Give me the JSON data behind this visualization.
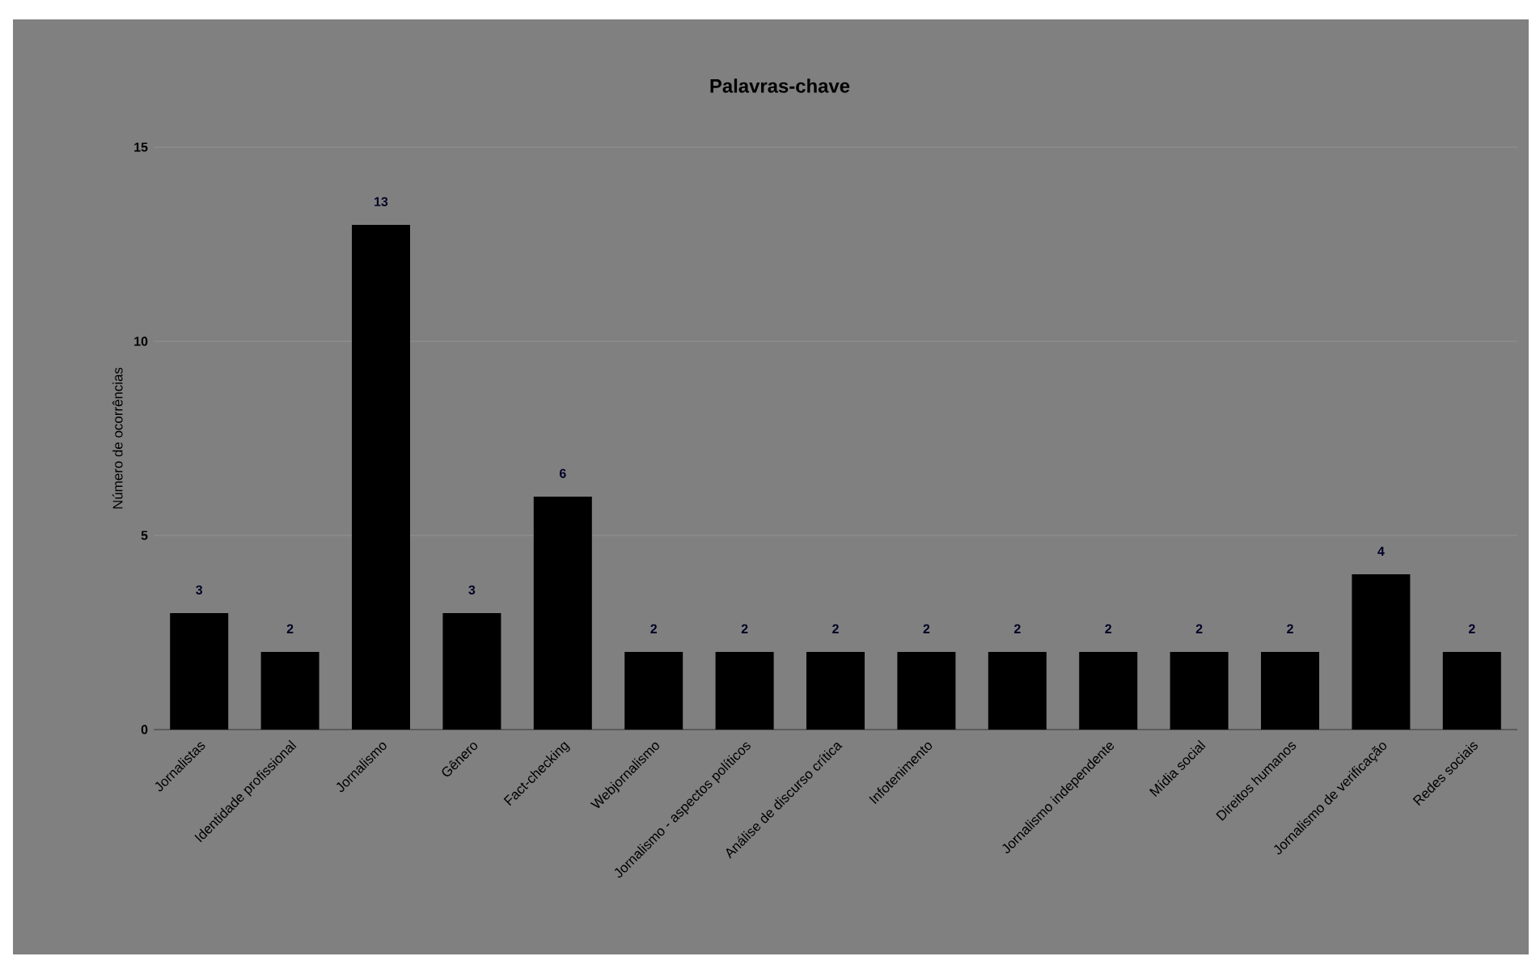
{
  "chart_data": {
    "type": "bar",
    "title": "Palavras-chave",
    "ylabel": "Número de ocorrências",
    "categories": [
      "Jornalistas",
      "Identidade profissional",
      "Jornalismo",
      "Gênero",
      "Fact-checking",
      "Webjornalismo",
      "Jornalismo - aspectos políticos",
      "Análise de discurso crítica",
      "Infotenimento",
      null,
      "Jornalismo independente",
      "Mídia social",
      "Direitos humanos",
      "Jornalismo de verificação",
      "Redes sociais"
    ],
    "values": [
      3,
      2,
      13,
      3,
      6,
      2,
      2,
      2,
      2,
      2,
      2,
      2,
      2,
      4,
      2
    ],
    "color": "#000000",
    "ylim": [
      0,
      15
    ],
    "yticks": [
      0,
      5,
      10,
      15
    ],
    "grid": "y",
    "data_labels": true
  }
}
